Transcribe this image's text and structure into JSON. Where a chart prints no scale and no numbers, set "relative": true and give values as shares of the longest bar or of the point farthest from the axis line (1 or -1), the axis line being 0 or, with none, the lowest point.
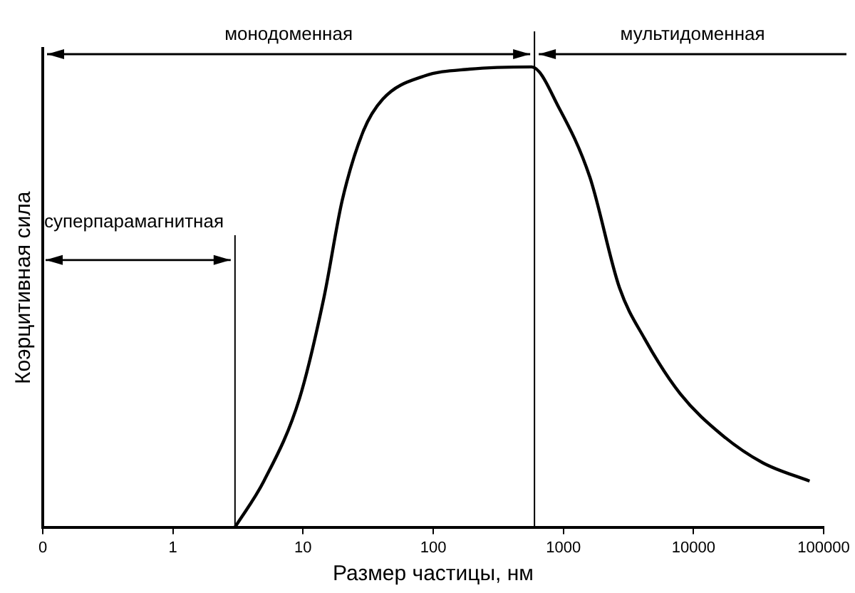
{
  "chart_data": {
    "type": "line",
    "xlabel": "Размер частицы, нм",
    "ylabel": "Коэрцитивная сила",
    "relative": true,
    "log": "x",
    "grid": false,
    "legend": false,
    "marker": "none",
    "line_style": "solid",
    "xlim": [
      0.1,
      100000
    ],
    "xticks": [
      {
        "value": 0.1,
        "label": "0"
      },
      1,
      10,
      100,
      1000,
      10000,
      100000
    ],
    "series": [
      {
        "color": "#000000",
        "x": [
          3,
          5,
          9.4,
          14.5,
          20,
          29,
          41,
          85,
          190,
          570,
          930,
          1600,
          2700,
          4200,
          7900,
          16600,
          34000,
          78000
        ],
        "values": [
          0,
          0.1,
          0.28,
          0.5,
          0.71,
          0.86,
          0.93,
          0.98,
          0.995,
          1,
          0.91,
          0.76,
          0.52,
          0.41,
          0.29,
          0.2,
          0.14,
          0.1
        ]
      }
    ],
    "ref_lines": [
      {
        "axis": "x",
        "value": 3
      },
      {
        "axis": "x",
        "value": 600
      }
    ],
    "annotations": [
      "суперпарамагнитная",
      "монодоменная",
      "мультидоменная"
    ]
  }
}
